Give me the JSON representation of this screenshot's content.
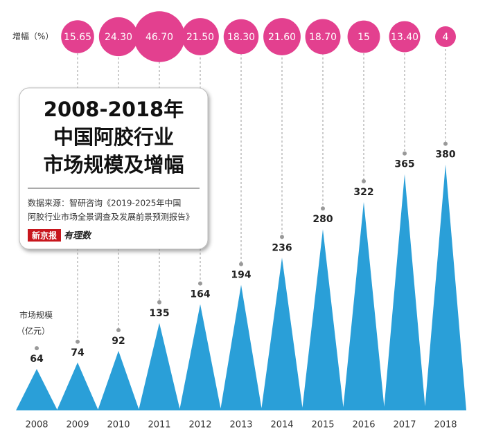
{
  "chart_data": {
    "type": "triangle_bubble",
    "title_lines": [
      "2008-2018年",
      "中国阿胶行业",
      "市场规模及增幅"
    ],
    "source_lines": [
      "数据来源：智研咨询《2019-2025年中国",
      "阿胶行业市场全景调查及发展前景预测报告》"
    ],
    "brand": "新京报",
    "brand_sub": "有理数",
    "categories": [
      "2008",
      "2009",
      "2010",
      "2011",
      "2012",
      "2013",
      "2014",
      "2015",
      "2016",
      "2017",
      "2018"
    ],
    "ylim": [
      0,
      400
    ],
    "series": [
      {
        "name": "市场规模",
        "unit": "（亿元）",
        "color": "#2a9fd8",
        "values": [
          64,
          74,
          92,
          135,
          164,
          194,
          236,
          280,
          322,
          365,
          380
        ]
      },
      {
        "name": "增幅（%）",
        "color": "#e3408f",
        "values": [
          null,
          15.65,
          24.3,
          46.7,
          21.5,
          18.3,
          21.6,
          18.7,
          15,
          13.4,
          4
        ],
        "value_labels": [
          null,
          "15.65",
          "24.30",
          "46.70",
          "21.50",
          "18.30",
          "21.60",
          "18.70",
          "15",
          "13.40",
          "4"
        ]
      }
    ]
  }
}
